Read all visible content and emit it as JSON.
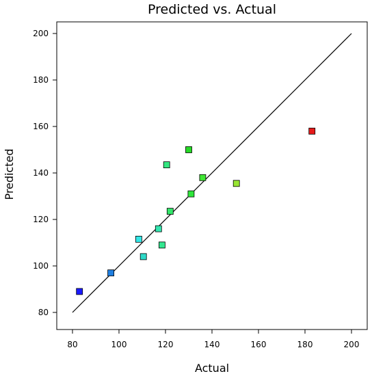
{
  "chart_data": {
    "type": "scatter",
    "title": "Predicted vs. Actual",
    "xlabel": "Actual",
    "ylabel": "Predicted",
    "xlim": [
      80,
      200
    ],
    "ylim": [
      80,
      200
    ],
    "xticks": [
      "80",
      "100",
      "120",
      "140",
      "160",
      "180",
      "200"
    ],
    "yticks": [
      "80",
      "100",
      "120",
      "140",
      "160",
      "180",
      "200"
    ],
    "grid": false,
    "reference_line": {
      "from": [
        80,
        80
      ],
      "to": [
        200,
        200
      ]
    },
    "points": [
      {
        "x": 83,
        "y": 89,
        "color": "#1a1aff"
      },
      {
        "x": 96.5,
        "y": 97,
        "color": "#1f7fe0"
      },
      {
        "x": 108.5,
        "y": 111.5,
        "color": "#33e6e6"
      },
      {
        "x": 110.5,
        "y": 104,
        "color": "#2ed9c8"
      },
      {
        "x": 117,
        "y": 116,
        "color": "#33e6b0"
      },
      {
        "x": 118.5,
        "y": 109,
        "color": "#33e68f"
      },
      {
        "x": 120.5,
        "y": 143.5,
        "color": "#33e680"
      },
      {
        "x": 122,
        "y": 123.5,
        "color": "#33e66a"
      },
      {
        "x": 130,
        "y": 150,
        "color": "#26d926"
      },
      {
        "x": 131,
        "y": 131,
        "color": "#2ee63a"
      },
      {
        "x": 136,
        "y": 138,
        "color": "#40e633"
      },
      {
        "x": 150.5,
        "y": 135.5,
        "color": "#99e633"
      },
      {
        "x": 183,
        "y": 158,
        "color": "#e61a1a"
      }
    ]
  }
}
